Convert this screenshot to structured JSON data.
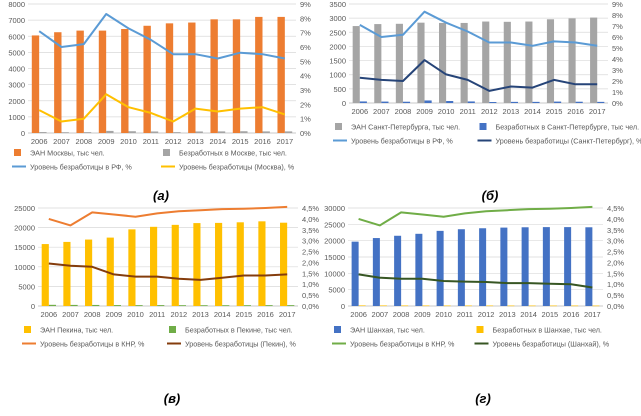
{
  "chart_data": [
    {
      "id": "a",
      "type": "bar",
      "caption": "(а)",
      "categories": [
        "2006",
        "2007",
        "2008",
        "2009",
        "2010",
        "2011",
        "2012",
        "2013",
        "2014",
        "2015",
        "2016",
        "2017"
      ],
      "ylim": [
        0,
        8000
      ],
      "yticks": [
        "0",
        "1000",
        "2000",
        "3000",
        "4000",
        "5000",
        "6000",
        "7000",
        "8000"
      ],
      "y2lim": [
        0,
        9
      ],
      "y2ticks": [
        "0%",
        "1%",
        "2%",
        "3%",
        "4%",
        "5%",
        "6%",
        "7%",
        "8%",
        "9%"
      ],
      "gridlines": true,
      "series": [
        {
          "name": "ЭАН Москвы, тыс чел.",
          "kind": "bar",
          "axis": "left",
          "color": "#ed7d31",
          "values": [
            6050,
            6250,
            6350,
            6350,
            6450,
            6650,
            6800,
            6850,
            7050,
            7050,
            7200,
            7200
          ]
        },
        {
          "name": "Безработных в Москве, тыс чел.",
          "kind": "bar",
          "axis": "left",
          "color": "#a5a5a5",
          "values": [
            60,
            50,
            55,
            130,
            110,
            95,
            55,
            95,
            100,
            110,
            100,
            100
          ]
        },
        {
          "name": "Уровень безработицы в РФ, %",
          "kind": "line",
          "axis": "right",
          "color": "#5b9bd5",
          "values": [
            7.1,
            6.0,
            6.2,
            8.3,
            7.3,
            6.5,
            5.5,
            5.5,
            5.2,
            5.6,
            5.5,
            5.2
          ]
        },
        {
          "name": "Уровень безработицы (Москва), %",
          "kind": "line",
          "axis": "right",
          "color": "#ffc000",
          "values": [
            1.6,
            0.8,
            1.0,
            2.7,
            1.8,
            1.4,
            0.8,
            1.7,
            1.5,
            1.7,
            1.8,
            1.3
          ]
        }
      ]
    },
    {
      "id": "b",
      "type": "bar",
      "caption": "(б)",
      "categories": [
        "2006",
        "2007",
        "2008",
        "2009",
        "2010",
        "2011",
        "2012",
        "2013",
        "2014",
        "2015",
        "2016",
        "2017"
      ],
      "ylim": [
        0,
        3500
      ],
      "yticks": [
        "0",
        "500",
        "1000",
        "1500",
        "2000",
        "2500",
        "3000",
        "3500"
      ],
      "y2lim": [
        0,
        9
      ],
      "y2ticks": [
        "0%",
        "1%",
        "2%",
        "3%",
        "4%",
        "5%",
        "6%",
        "7%",
        "8%",
        "9%"
      ],
      "gridlines": true,
      "series": [
        {
          "name": "ЭАН Санкт-Петербурга, тыс чел.",
          "kind": "bar",
          "axis": "left",
          "color": "#a5a5a5",
          "values": [
            2720,
            2790,
            2800,
            2840,
            2830,
            2830,
            2880,
            2870,
            2880,
            2960,
            2990,
            3020
          ]
        },
        {
          "name": "Безработных в Санкт-Петербурге, тыс чел.",
          "kind": "bar",
          "axis": "left",
          "color": "#4472c4",
          "values": [
            55,
            50,
            45,
            90,
            70,
            55,
            35,
            40,
            40,
            50,
            45,
            40
          ]
        },
        {
          "name": "Уровень безработицы в РФ, %",
          "kind": "line",
          "axis": "right",
          "color": "#5b9bd5",
          "values": [
            7.1,
            6.0,
            6.2,
            8.3,
            7.3,
            6.5,
            5.5,
            5.5,
            5.2,
            5.6,
            5.5,
            5.2
          ]
        },
        {
          "name": "Уровень безработицы (Санкт-Петербург), %",
          "kind": "line",
          "axis": "right",
          "color": "#264478",
          "values": [
            2.3,
            2.1,
            2.0,
            3.9,
            2.6,
            2.1,
            1.1,
            1.5,
            1.4,
            2.1,
            1.7,
            1.7
          ]
        }
      ]
    },
    {
      "id": "v",
      "type": "bar",
      "caption": "(в)",
      "categories": [
        "2006",
        "2007",
        "2008",
        "2009",
        "2010",
        "2011",
        "2012",
        "2013",
        "2014",
        "2015",
        "2016",
        "2017"
      ],
      "ylim": [
        0,
        25000
      ],
      "yticks": [
        "0",
        "5000",
        "10000",
        "15000",
        "20000",
        "25000"
      ],
      "y2lim": [
        0,
        4.5
      ],
      "y2ticks": [
        "0,0%",
        "0,5%",
        "1,0%",
        "1,5%",
        "2,0%",
        "2,5%",
        "3,0%",
        "3,5%",
        "4,0%",
        "4,5%"
      ],
      "gridlines": true,
      "series": [
        {
          "name": "ЭАН Пекина, тыс чел.",
          "kind": "bar",
          "axis": "left",
          "color": "#ffc000",
          "values": [
            15800,
            16350,
            16950,
            17450,
            19550,
            20200,
            20700,
            21150,
            21200,
            21350,
            21600,
            21250
          ]
        },
        {
          "name": "Безработных в Пекине, тыс чел.",
          "kind": "bar",
          "axis": "left",
          "color": "#70ad47",
          "values": [
            300,
            280,
            270,
            240,
            220,
            230,
            210,
            200,
            200,
            210,
            220,
            220
          ]
        },
        {
          "name": "Уровень безработицы в КНР, %",
          "kind": "line",
          "axis": "right",
          "color": "#ed7d31",
          "values": [
            4.0,
            3.7,
            4.3,
            4.2,
            4.1,
            4.25,
            4.35,
            4.4,
            4.45,
            4.47,
            4.5,
            4.55
          ]
        },
        {
          "name": "Уровень безработицы (Пекин), %",
          "kind": "line",
          "axis": "right",
          "color": "#843c0c",
          "values": [
            1.95,
            1.85,
            1.8,
            1.45,
            1.35,
            1.35,
            1.25,
            1.2,
            1.3,
            1.4,
            1.4,
            1.45
          ]
        }
      ]
    },
    {
      "id": "g",
      "type": "bar",
      "caption": "(г)",
      "categories": [
        "2006",
        "2007",
        "2008",
        "2009",
        "2010",
        "2011",
        "2012",
        "2013",
        "2014",
        "2015",
        "2016",
        "2017"
      ],
      "ylim": [
        0,
        30000
      ],
      "yticks": [
        "0",
        "5000",
        "10000",
        "15000",
        "20000",
        "25000",
        "30000"
      ],
      "y2lim": [
        0,
        4.5
      ],
      "y2ticks": [
        "0,0%",
        "0,5%",
        "1,0%",
        "1,5%",
        "2,0%",
        "2,5%",
        "3,0%",
        "3,5%",
        "4,0%",
        "4,5%"
      ],
      "gridlines": true,
      "series": [
        {
          "name": "ЭАН Шанхая, тыс чел.",
          "kind": "bar",
          "axis": "left",
          "color": "#4472c4",
          "values": [
            19700,
            20800,
            21500,
            22100,
            23000,
            23500,
            23800,
            24000,
            24100,
            24150,
            24150,
            24100
          ]
        },
        {
          "name": "Безработных в Шанхае, тыс чел.",
          "kind": "bar",
          "axis": "left",
          "color": "#ffc000",
          "values": [
            180,
            170,
            160,
            160,
            150,
            150,
            150,
            140,
            140,
            140,
            140,
            130
          ]
        },
        {
          "name": "Уровень безработицы в КНР, %",
          "kind": "line",
          "axis": "right",
          "color": "#70ad47",
          "values": [
            4.0,
            3.7,
            4.3,
            4.2,
            4.1,
            4.25,
            4.35,
            4.4,
            4.45,
            4.47,
            4.5,
            4.55
          ]
        },
        {
          "name": "Уровень безработицы (Шанхай), %",
          "kind": "line",
          "axis": "right",
          "color": "#375623",
          "values": [
            1.45,
            1.3,
            1.25,
            1.25,
            1.15,
            1.12,
            1.1,
            1.05,
            1.05,
            1.02,
            1.0,
            0.85
          ]
        }
      ]
    }
  ]
}
